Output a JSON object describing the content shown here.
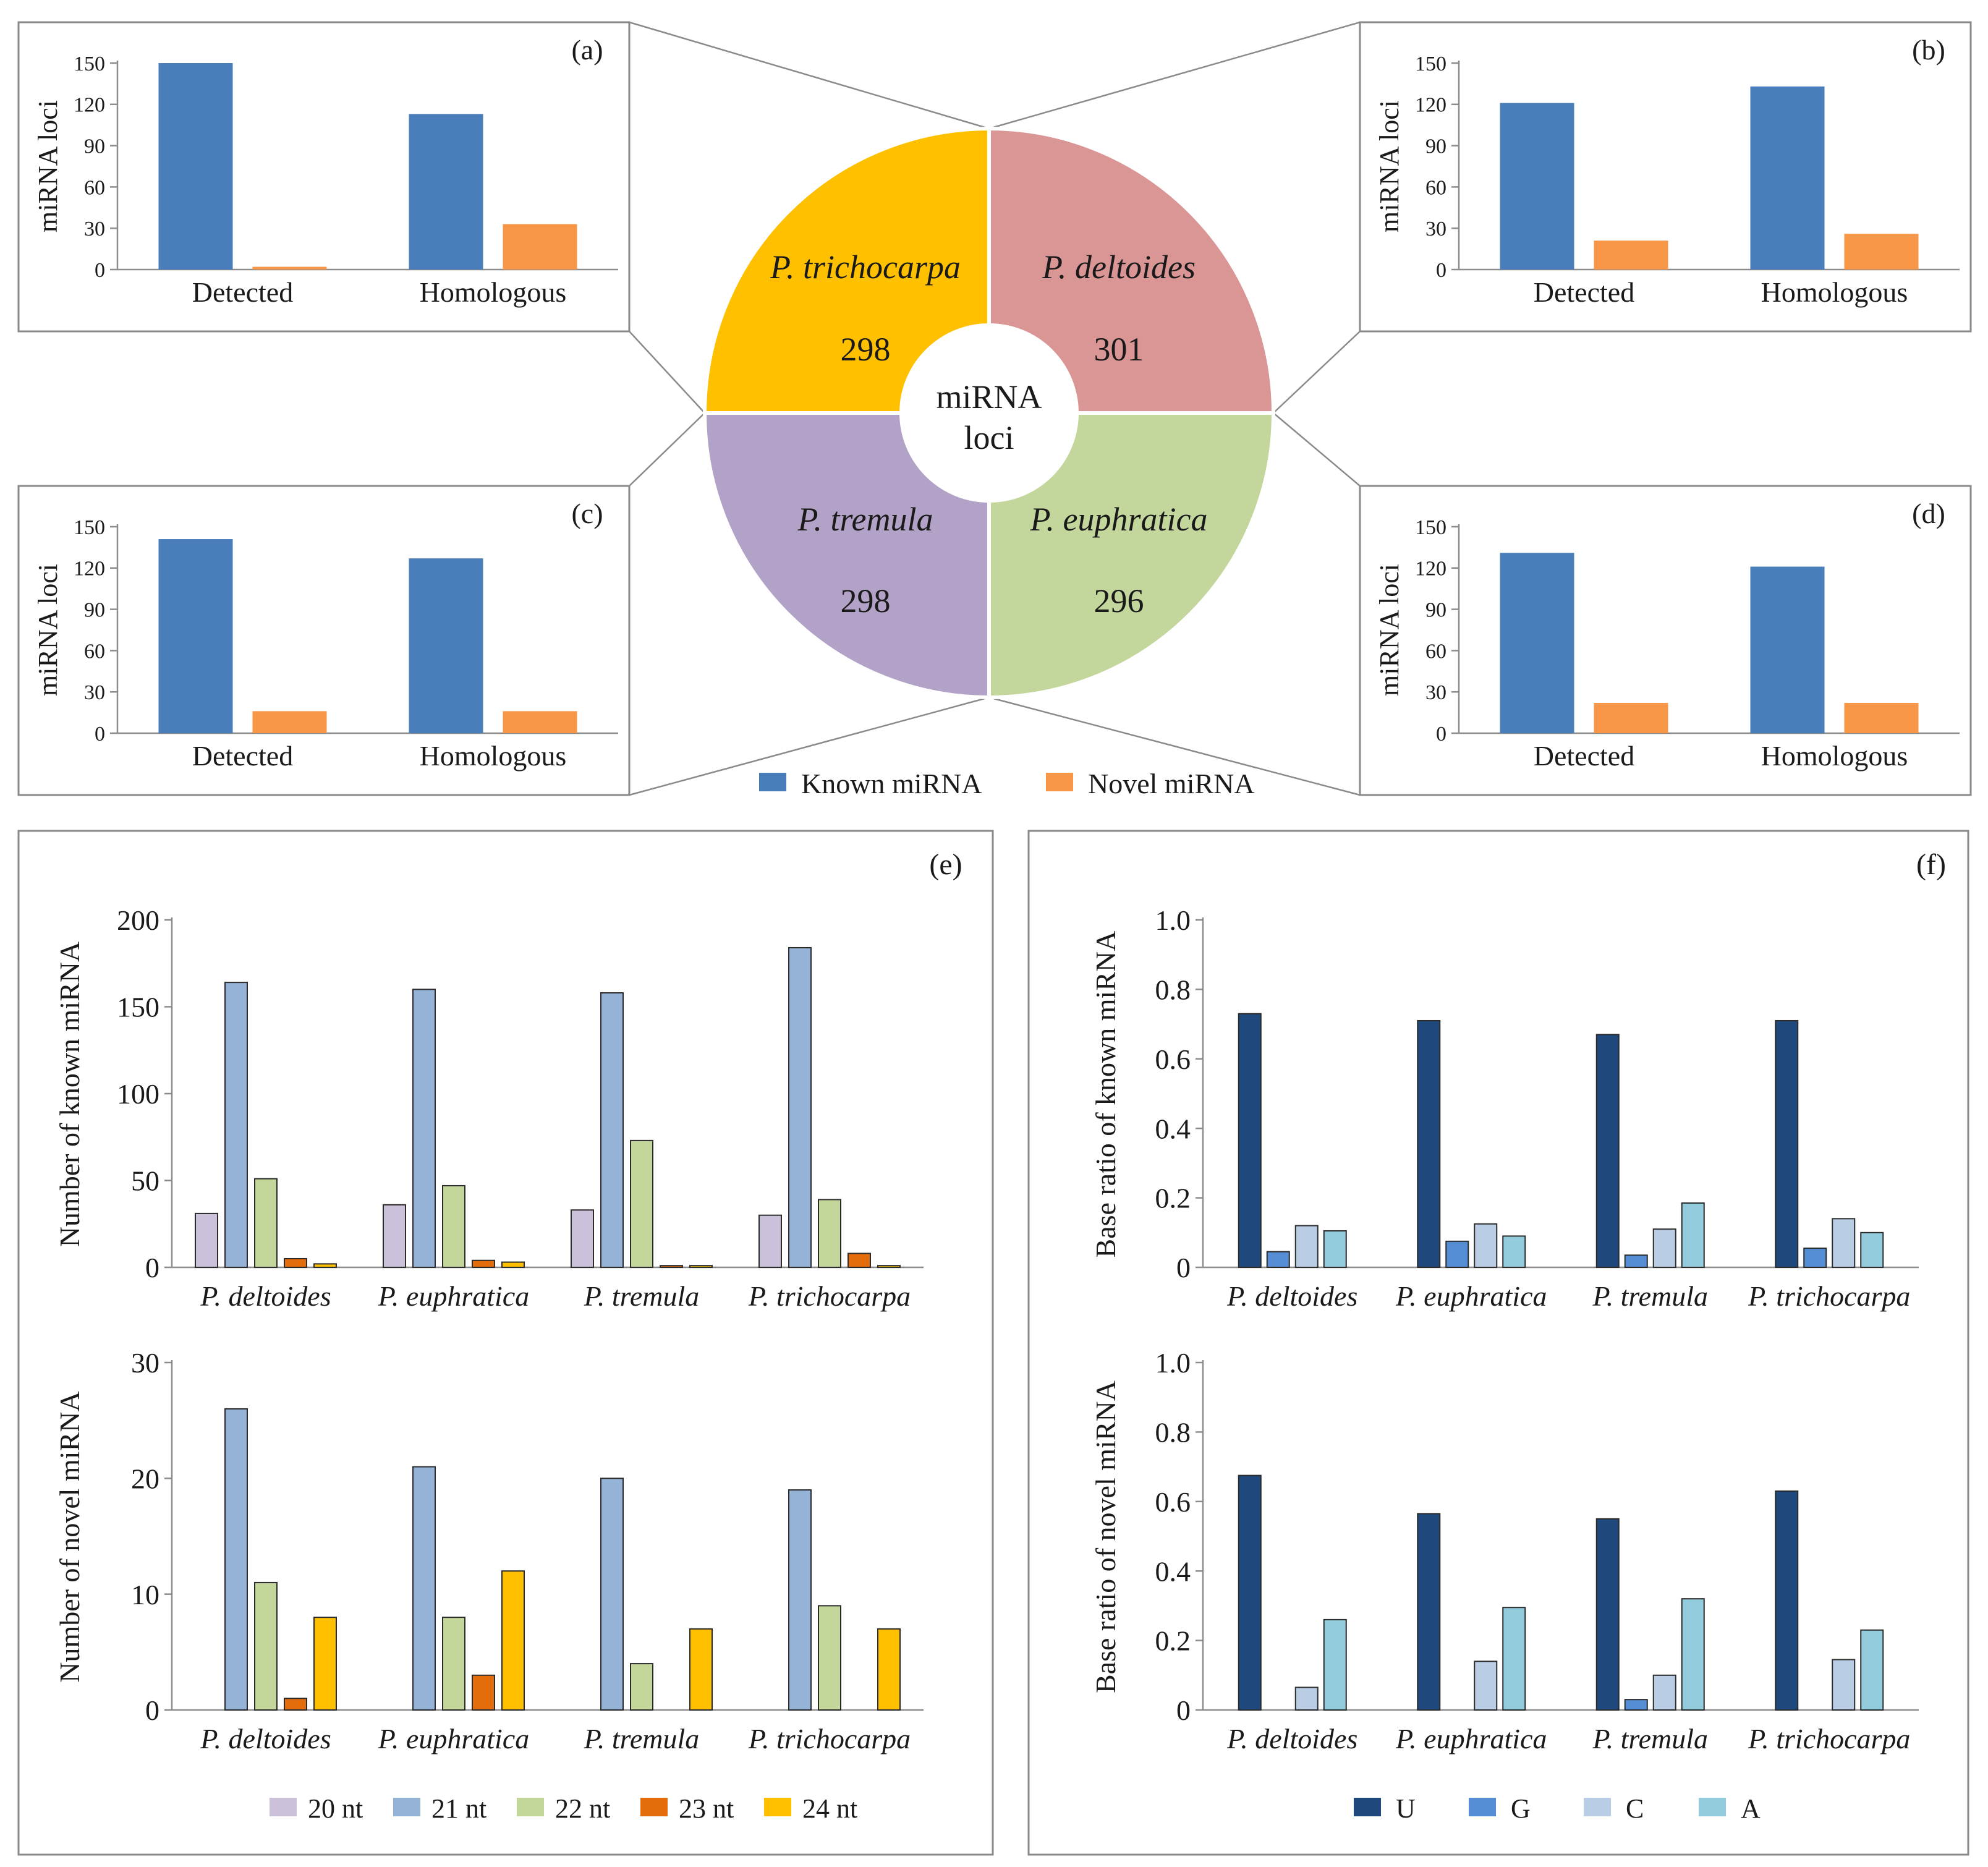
{
  "colors": {
    "known": "#4a7ebb",
    "novel": "#f79646",
    "pie_trichocarpa": "#ffc000",
    "pie_deltoides": "#d99694",
    "pie_tremula": "#b3a2c7",
    "pie_euphratica": "#c3d69b",
    "len_20nt": "#ccc1da",
    "len_21nt": "#95b3d7",
    "len_22nt": "#c4d79b",
    "len_23nt": "#e46c0a",
    "len_24nt": "#ffc000",
    "base_U": "#1f497d",
    "base_G": "#558ed5",
    "base_C": "#b9cde5",
    "base_A": "#93cddd"
  },
  "legend_loci": {
    "known": "Known miRNA",
    "novel": "Novel miRNA"
  },
  "pie": {
    "center_label": [
      "miRNA",
      "loci"
    ],
    "segments": [
      {
        "species": "P. trichocarpa",
        "value": 298,
        "color": "#ffc000"
      },
      {
        "species": "P. deltoides",
        "value": 301,
        "color": "#d99694"
      },
      {
        "species": "P. tremula",
        "value": 298,
        "color": "#b3a2c7"
      },
      {
        "species": "P. euphratica",
        "value": 296,
        "color": "#c3d69b"
      }
    ]
  },
  "legend_length": [
    "20 nt",
    "21 nt",
    "22 nt",
    "23 nt",
    "24 nt"
  ],
  "legend_base": [
    "U",
    "G",
    "C",
    "A"
  ],
  "chart_data": [
    {
      "panel": "(a)",
      "type": "bar",
      "categories": [
        "Detected",
        "Homologous"
      ],
      "series": [
        {
          "name": "Known miRNA",
          "values": [
            150,
            113
          ]
        },
        {
          "name": "Novel miRNA",
          "values": [
            2,
            33
          ]
        }
      ],
      "ylabel": "miRNA loci",
      "ylim": [
        0,
        150
      ],
      "yticks": [
        0,
        30,
        60,
        90,
        120,
        150
      ]
    },
    {
      "panel": "(b)",
      "type": "bar",
      "categories": [
        "Detected",
        "Homologous"
      ],
      "series": [
        {
          "name": "Known miRNA",
          "values": [
            121,
            133
          ]
        },
        {
          "name": "Novel miRNA",
          "values": [
            21,
            26
          ]
        }
      ],
      "ylabel": "miRNA loci",
      "ylim": [
        0,
        150
      ],
      "yticks": [
        0,
        30,
        60,
        90,
        120,
        150
      ]
    },
    {
      "panel": "(c)",
      "type": "bar",
      "categories": [
        "Detected",
        "Homologous"
      ],
      "series": [
        {
          "name": "Known miRNA",
          "values": [
            141,
            127
          ]
        },
        {
          "name": "Novel miRNA",
          "values": [
            16,
            16
          ]
        }
      ],
      "ylabel": "miRNA loci",
      "ylim": [
        0,
        150
      ],
      "yticks": [
        0,
        30,
        60,
        90,
        120,
        150
      ]
    },
    {
      "panel": "(d)",
      "type": "bar",
      "categories": [
        "Detected",
        "Homologous"
      ],
      "series": [
        {
          "name": "Known miRNA",
          "values": [
            131,
            121
          ]
        },
        {
          "name": "Novel miRNA",
          "values": [
            22,
            22
          ]
        }
      ],
      "ylabel": "miRNA loci",
      "ylim": [
        0,
        150
      ],
      "yticks": [
        0,
        30,
        60,
        90,
        120,
        150
      ]
    },
    {
      "panel": "(e)",
      "type": "bar",
      "categories": [
        "P. deltoides",
        "P. euphratica",
        "P. tremula",
        "P. trichocarpa"
      ],
      "series": [
        {
          "name": "20 nt",
          "values": [
            31,
            36,
            33,
            30
          ]
        },
        {
          "name": "21 nt",
          "values": [
            164,
            160,
            158,
            184
          ]
        },
        {
          "name": "22 nt",
          "values": [
            51,
            47,
            73,
            39
          ]
        },
        {
          "name": "23 nt",
          "values": [
            5,
            4,
            1,
            8
          ]
        },
        {
          "name": "24 nt",
          "values": [
            2,
            3,
            1,
            1
          ]
        }
      ],
      "ylabel": "Number  of known miRNA",
      "ylim": [
        0,
        200
      ],
      "yticks": [
        0,
        50,
        100,
        150,
        200
      ]
    },
    {
      "panel": "(e)",
      "type": "bar",
      "categories": [
        "P. deltoides",
        "P. euphratica",
        "P. tremula",
        "P. trichocarpa"
      ],
      "series": [
        {
          "name": "20 nt",
          "values": [
            0,
            0,
            0,
            0
          ]
        },
        {
          "name": "21 nt",
          "values": [
            26,
            21,
            20,
            19
          ]
        },
        {
          "name": "22 nt",
          "values": [
            11,
            8,
            4,
            9
          ]
        },
        {
          "name": "23 nt",
          "values": [
            1,
            3,
            0,
            0
          ]
        },
        {
          "name": "24 nt",
          "values": [
            8,
            12,
            7,
            7
          ]
        }
      ],
      "ylabel": "Number of novel miRNA",
      "ylim": [
        0,
        30
      ],
      "yticks": [
        0,
        10,
        20,
        30
      ]
    },
    {
      "panel": "(f)",
      "type": "bar",
      "categories": [
        "P. deltoides",
        "P. euphratica",
        "P. tremula",
        "P. trichocarpa"
      ],
      "series": [
        {
          "name": "U",
          "values": [
            0.73,
            0.71,
            0.67,
            0.71
          ]
        },
        {
          "name": "G",
          "values": [
            0.045,
            0.075,
            0.035,
            0.055
          ]
        },
        {
          "name": "C",
          "values": [
            0.12,
            0.125,
            0.11,
            0.14
          ]
        },
        {
          "name": "A",
          "values": [
            0.105,
            0.09,
            0.185,
            0.1
          ]
        }
      ],
      "ylabel": "Base ratio of known miRNA",
      "ylim": [
        0,
        1.0
      ],
      "yticks": [
        "0",
        "0.2",
        "0.4",
        "0.6",
        "0.8",
        "1.0"
      ]
    },
    {
      "panel": "(f)",
      "type": "bar",
      "categories": [
        "P. deltoides",
        "P. euphratica",
        "P. tremula",
        "P. trichocarpa"
      ],
      "series": [
        {
          "name": "U",
          "values": [
            0.675,
            0.565,
            0.55,
            0.63
          ]
        },
        {
          "name": "G",
          "values": [
            0,
            0,
            0.03,
            0
          ]
        },
        {
          "name": "C",
          "values": [
            0.065,
            0.14,
            0.1,
            0.145
          ]
        },
        {
          "name": "A",
          "values": [
            0.26,
            0.295,
            0.32,
            0.23
          ]
        }
      ],
      "ylabel": "Base ratio of novel miRNA",
      "ylim": [
        0,
        1.0
      ],
      "yticks": [
        "0",
        "0.2",
        "0.4",
        "0.6",
        "0.8",
        "1.0"
      ]
    }
  ]
}
